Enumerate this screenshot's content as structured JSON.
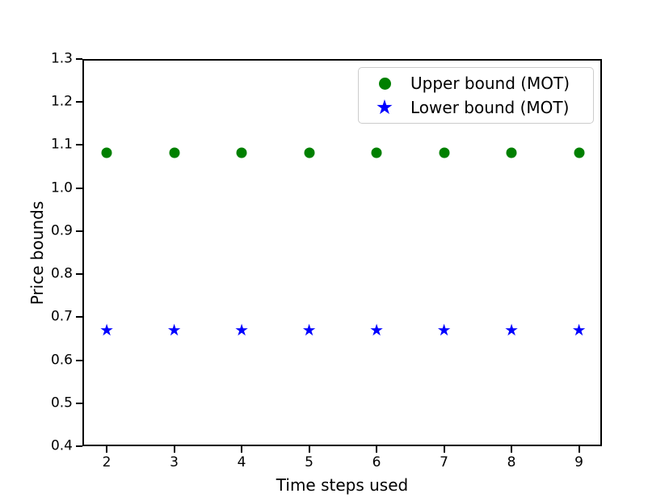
{
  "chart_data": {
    "type": "scatter",
    "title": "",
    "xlabel": "Time steps used",
    "ylabel": "Price bounds",
    "x": [
      2,
      3,
      4,
      5,
      6,
      7,
      8,
      9
    ],
    "series": [
      {
        "name": "Upper bound (MOT)",
        "marker": "circle",
        "color": "#008000",
        "values": [
          1.082,
          1.082,
          1.082,
          1.082,
          1.082,
          1.082,
          1.082,
          1.082
        ]
      },
      {
        "name": "Lower bound (MOT)",
        "marker": "star",
        "color": "#0000ff",
        "values": [
          0.669,
          0.669,
          0.669,
          0.669,
          0.669,
          0.669,
          0.669,
          0.669
        ]
      }
    ],
    "xlim": [
      1.64,
      9.34
    ],
    "ylim": [
      0.4,
      1.3
    ],
    "xticks": [
      2,
      3,
      4,
      5,
      6,
      7,
      8,
      9
    ],
    "yticks": [
      0.4,
      0.5,
      0.6,
      0.7,
      0.8,
      0.9,
      1.0,
      1.1,
      1.2,
      1.3
    ],
    "grid": false,
    "legend_position": "upper right",
    "frame_color": "#000000",
    "background_color": "#ffffff",
    "star_glyph": "★"
  }
}
